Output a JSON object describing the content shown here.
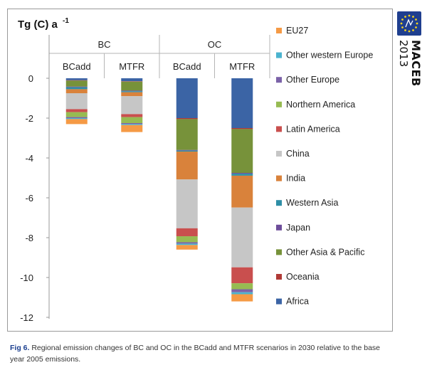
{
  "chart_data": {
    "type": "bar",
    "stacked": true,
    "title": "",
    "ylabel": "Tg (C) a",
    "ylabel_superscript": "-1",
    "ylim": [
      -12,
      0
    ],
    "yticks": [
      0,
      -2,
      -4,
      -6,
      -8,
      -10,
      -12
    ],
    "grid": false,
    "legend_position": "right",
    "groups": [
      {
        "label": "BC",
        "categories": [
          "BCadd",
          "MTFR"
        ]
      },
      {
        "label": "OC",
        "categories": [
          "BCadd",
          "MTFR"
        ]
      }
    ],
    "categories": [
      "BC BCadd",
      "BC MTFR",
      "OC BCadd",
      "OC MTFR"
    ],
    "series": [
      {
        "name": "Africa",
        "color": "#3b64a5",
        "values": [
          -0.1,
          -0.15,
          -2.0,
          -2.5
        ]
      },
      {
        "name": "Oceania",
        "color": "#b03a36",
        "values": [
          -0.02,
          -0.02,
          -0.05,
          -0.05
        ]
      },
      {
        "name": "Other Asia & Pacific",
        "color": "#77923a",
        "values": [
          -0.3,
          -0.45,
          -1.55,
          -2.2
        ]
      },
      {
        "name": "Japan",
        "color": "#6d4d9a",
        "values": [
          -0.03,
          -0.03,
          -0.03,
          -0.04
        ]
      },
      {
        "name": "Western Asia",
        "color": "#2e8ea6",
        "values": [
          -0.1,
          -0.05,
          -0.05,
          -0.1
        ]
      },
      {
        "name": "India",
        "color": "#d9823b",
        "values": [
          -0.2,
          -0.2,
          -1.4,
          -1.6
        ]
      },
      {
        "name": "China",
        "color": "#c6c6c6",
        "values": [
          -0.8,
          -0.9,
          -2.45,
          -3.0
        ]
      },
      {
        "name": "Latin America",
        "color": "#c94f4e",
        "values": [
          -0.15,
          -0.15,
          -0.4,
          -0.8
        ]
      },
      {
        "name": "Northern America",
        "color": "#97bb52",
        "values": [
          -0.25,
          -0.3,
          -0.3,
          -0.3
        ]
      },
      {
        "name": "Other Europe",
        "color": "#7b62a8",
        "values": [
          -0.05,
          -0.05,
          -0.07,
          -0.15
        ]
      },
      {
        "name": "Other western Europe",
        "color": "#4bb3cf",
        "values": [
          -0.05,
          -0.05,
          -0.07,
          -0.1
        ]
      },
      {
        "name": "EU27",
        "color": "#f59a45",
        "values": [
          -0.25,
          -0.35,
          -0.23,
          -0.36
        ]
      }
    ]
  },
  "legend_items": [
    {
      "name": "EU27",
      "color": "#f59a45"
    },
    {
      "name": "Other western Europe",
      "color": "#4bb3cf"
    },
    {
      "name": "Other Europe",
      "color": "#7b62a8"
    },
    {
      "name": "Northern America",
      "color": "#97bb52"
    },
    {
      "name": "Latin America",
      "color": "#c94f4e"
    },
    {
      "name": "China",
      "color": "#c6c6c6"
    },
    {
      "name": "India",
      "color": "#d9823b"
    },
    {
      "name": "Western Asia",
      "color": "#2e8ea6"
    },
    {
      "name": "Japan",
      "color": "#6d4d9a"
    },
    {
      "name": "Other Asia & Pacific",
      "color": "#77923a"
    },
    {
      "name": "Oceania",
      "color": "#b03a36"
    },
    {
      "name": "Africa",
      "color": "#3b64a5"
    }
  ],
  "logo": {
    "name": "MACEB",
    "year": "2013"
  },
  "caption": {
    "label": "Fig 6.",
    "text": " Regional emission changes of BC and OC in the BCadd and MTFR scenarios in 2030 relative to the base year 2005 emissions."
  }
}
